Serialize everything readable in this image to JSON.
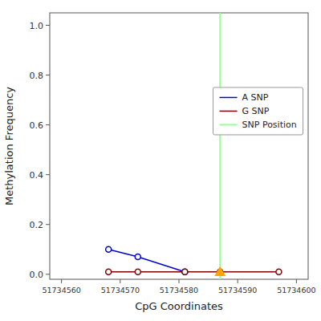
{
  "chart_data": {
    "type": "line",
    "xlabel": "CpG Coordinates",
    "ylabel": "Methylation Frequency",
    "series": [
      {
        "name": "A SNP",
        "type": "line",
        "color": "#0000cc",
        "marker": "circle",
        "line_style": "solid",
        "x": [
          51734568,
          51734573,
          51734581
        ],
        "values": [
          0.1,
          0.07,
          0.01
        ]
      },
      {
        "name": "G SNP",
        "type": "line",
        "color": "#800000",
        "marker": "circle",
        "line_style": "solid",
        "x": [
          51734568,
          51734573,
          51734581,
          51734587,
          51734597
        ],
        "values": [
          0.01,
          0.01,
          0.01,
          0.01,
          0.01
        ]
      },
      {
        "name": "SNP Position",
        "type": "vline",
        "color": "#99ff99",
        "line_style": "solid",
        "x": [
          51734587
        ]
      },
      {
        "type": "scatter",
        "color": "#ffa500",
        "marker": "triangle",
        "x": [
          51734587
        ],
        "values": [
          0.01
        ]
      }
    ],
    "xlim": [
      51734558,
      51734602
    ],
    "ylim": [
      -0.02,
      1.05
    ],
    "xticks": [
      51734560,
      51734570,
      51734580,
      51734590,
      51734600
    ],
    "yticks": [
      {
        "value": 0,
        "label": "0.0"
      },
      0.2,
      0.4,
      0.6,
      0.8,
      {
        "value": 1,
        "label": "1.0"
      }
    ],
    "grid": false,
    "legend": "upper right"
  }
}
